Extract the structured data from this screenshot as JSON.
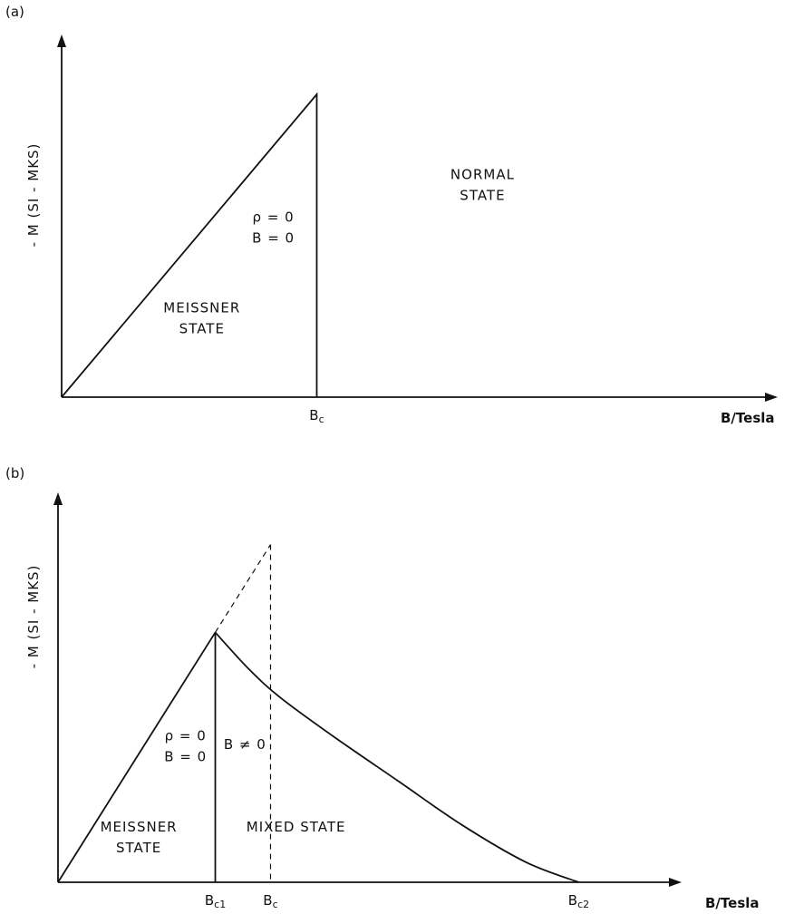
{
  "chart_data": [
    {
      "type": "line",
      "panel_label": "(a)",
      "ylabel": "- M  (SI - MKS)",
      "xlabel": "B/Tesla",
      "x_ticks": [
        {
          "main": "B",
          "sub": "c",
          "x": 1
        }
      ],
      "xlim": [
        0,
        2.7
      ],
      "ylim": [
        0,
        1.03
      ],
      "series": [
        {
          "style": "solid",
          "points": [
            [
              0,
              0
            ],
            [
              1,
              1
            ],
            [
              1,
              0
            ]
          ]
        }
      ],
      "region_labels": [
        {
          "lines": [
            "ρ = 0",
            "B = 0"
          ],
          "at": [
            0.83,
            0.58
          ]
        },
        {
          "lines": [
            "MEISSNER",
            "STATE"
          ],
          "at": [
            0.55,
            0.28
          ]
        },
        {
          "lines": [
            "NORMAL",
            "STATE"
          ],
          "at": [
            1.65,
            0.72
          ]
        }
      ]
    },
    {
      "type": "line",
      "panel_label": "(b)",
      "ylabel": "- M  (SI - MKS)",
      "xlabel": "B/Tesla",
      "x_ticks": [
        {
          "main": "B",
          "sub": "c1",
          "x": 0.74
        },
        {
          "main": "B",
          "sub": "c",
          "x": 1
        },
        {
          "main": "B",
          "sub": "c2",
          "x": 2.45
        }
      ],
      "xlim": [
        0,
        2.9
      ],
      "ylim": [
        0,
        1.05
      ],
      "series": [
        {
          "style": "solid",
          "points": [
            [
              0,
              0
            ],
            [
              0.74,
              0.74
            ]
          ]
        },
        {
          "style": "solid",
          "points": [
            [
              0.74,
              0.74
            ],
            [
              0.74,
              0
            ]
          ]
        },
        {
          "style": "solid",
          "curve": true,
          "points": [
            [
              0.74,
              0.74
            ],
            [
              0.9,
              0.63
            ],
            [
              1.05,
              0.545
            ],
            [
              1.3,
              0.43
            ],
            [
              1.6,
              0.3
            ],
            [
              1.9,
              0.17
            ],
            [
              2.2,
              0.06
            ],
            [
              2.45,
              0
            ]
          ]
        },
        {
          "style": "dashed",
          "points": [
            [
              0.74,
              0.74
            ],
            [
              1,
              1
            ]
          ]
        },
        {
          "style": "dashed",
          "points": [
            [
              1,
              1
            ],
            [
              1,
              0
            ]
          ]
        }
      ],
      "region_labels": [
        {
          "lines": [
            "ρ = 0",
            "B = 0"
          ],
          "at": [
            0.6,
            0.42
          ]
        },
        {
          "lines": [
            "B ≠ 0"
          ],
          "at": [
            0.88,
            0.395
          ]
        },
        {
          "lines": [
            "MEISSNER",
            "STATE"
          ],
          "at": [
            0.38,
            0.15
          ]
        },
        {
          "lines": [
            "MIXED  STATE"
          ],
          "at": [
            1.12,
            0.15
          ]
        }
      ]
    }
  ]
}
